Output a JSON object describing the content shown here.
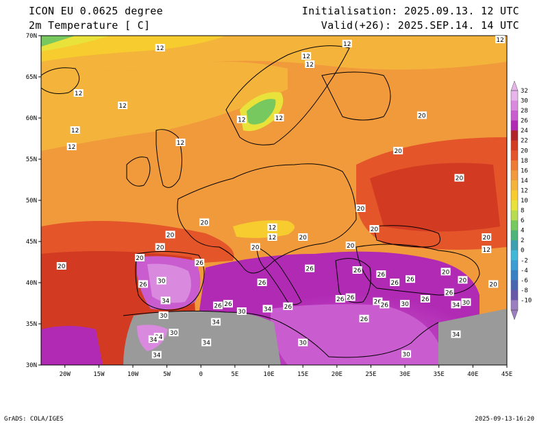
{
  "header": {
    "title_left": "ICON EU 0.0625 degree",
    "subtitle_left": "2m Temperature [ C]",
    "init": "Initialisation: 2025.09.13. 12 UTC",
    "valid": "Valid(+26): 2025.SEP.14. 14 UTC"
  },
  "axes": {
    "lat_ticks": [
      "70N",
      "65N",
      "60N",
      "55N",
      "50N",
      "45N",
      "40N",
      "35N",
      "30N"
    ],
    "lon_ticks": [
      "20W",
      "15W",
      "10W",
      "5W",
      "0",
      "5E",
      "10E",
      "15E",
      "20E",
      "25E",
      "30E",
      "35E",
      "40E",
      "45E"
    ]
  },
  "colorbar": {
    "levels": [
      "32",
      "30",
      "28",
      "26",
      "24",
      "22",
      "20",
      "18",
      "16",
      "14",
      "12",
      "10",
      "8",
      "6",
      "4",
      "2",
      "0",
      "-2",
      "-4",
      "-6",
      "-8",
      "-10"
    ],
    "colors": [
      "#e8b4ec",
      "#d98adf",
      "#c95ccf",
      "#b02ab3",
      "#b0242a",
      "#d23a22",
      "#e4552a",
      "#ee7a34",
      "#f09a3c",
      "#f4b43c",
      "#f6cc2e",
      "#e9e23a",
      "#b8dc50",
      "#78c860",
      "#4cb478",
      "#3ca0b0",
      "#40b8d8",
      "#3c9cd4",
      "#3a80c4",
      "#4a66b0",
      "#6a58a8",
      "#9a7ec0"
    ]
  },
  "contour_labels": [
    {
      "text": "12",
      "lon": -6,
      "lat": 68.5
    },
    {
      "text": "12",
      "lon": -18,
      "lat": 63
    },
    {
      "text": "12",
      "lon": -11.5,
      "lat": 61.5
    },
    {
      "text": "12",
      "lon": -18.5,
      "lat": 58.5
    },
    {
      "text": "12",
      "lon": -19,
      "lat": 56.5
    },
    {
      "text": "12",
      "lon": -3,
      "lat": 57
    },
    {
      "text": "12",
      "lon": 11.5,
      "lat": 60
    },
    {
      "text": "12",
      "lon": 6,
      "lat": 59.8
    },
    {
      "text": "12",
      "lon": 15.5,
      "lat": 67.5
    },
    {
      "text": "12",
      "lon": 16,
      "lat": 66.5
    },
    {
      "text": "12",
      "lon": 21.5,
      "lat": 69
    },
    {
      "text": "12",
      "lon": 44,
      "lat": 69.5
    },
    {
      "text": "12",
      "lon": 10.5,
      "lat": 46.7
    },
    {
      "text": "12",
      "lon": 10.5,
      "lat": 45.5
    },
    {
      "text": "12",
      "lon": 42,
      "lat": 44
    },
    {
      "text": "20",
      "lon": 32.5,
      "lat": 60.3
    },
    {
      "text": "20",
      "lon": 29,
      "lat": 56
    },
    {
      "text": "20",
      "lon": 38,
      "lat": 52.7
    },
    {
      "text": "20",
      "lon": 23.5,
      "lat": 49
    },
    {
      "text": "20",
      "lon": 0.5,
      "lat": 47.3
    },
    {
      "text": "20",
      "lon": -4.5,
      "lat": 45.8
    },
    {
      "text": "20",
      "lon": -20.5,
      "lat": 42
    },
    {
      "text": "20",
      "lon": -9,
      "lat": 43
    },
    {
      "text": "20",
      "lon": 8,
      "lat": 44.3
    },
    {
      "text": "20",
      "lon": 15,
      "lat": 45.5
    },
    {
      "text": "20",
      "lon": 22,
      "lat": 44.5
    },
    {
      "text": "20",
      "lon": 25.5,
      "lat": 46.5
    },
    {
      "text": "20",
      "lon": 42,
      "lat": 45.5
    },
    {
      "text": "20",
      "lon": 36,
      "lat": 41.3
    },
    {
      "text": "20",
      "lon": 38.5,
      "lat": 40.3
    },
    {
      "text": "20",
      "lon": 43,
      "lat": 39.8
    },
    {
      "text": "20",
      "lon": -6,
      "lat": 44.3
    },
    {
      "text": "26",
      "lon": -0.2,
      "lat": 42.4
    },
    {
      "text": "26",
      "lon": -8.5,
      "lat": 39.8
    },
    {
      "text": "26",
      "lon": 16,
      "lat": 41.7
    },
    {
      "text": "26",
      "lon": 23,
      "lat": 41.5
    },
    {
      "text": "26",
      "lon": 26.5,
      "lat": 41
    },
    {
      "text": "26",
      "lon": 28.5,
      "lat": 40
    },
    {
      "text": "26",
      "lon": 30.8,
      "lat": 40.4
    },
    {
      "text": "26",
      "lon": 22,
      "lat": 38.2
    },
    {
      "text": "26",
      "lon": 20.5,
      "lat": 38
    },
    {
      "text": "26",
      "lon": 26,
      "lat": 37.7
    },
    {
      "text": "26",
      "lon": 33,
      "lat": 38
    },
    {
      "text": "26",
      "lon": 36.5,
      "lat": 38.8
    },
    {
      "text": "26",
      "lon": 2.5,
      "lat": 37.2
    },
    {
      "text": "26",
      "lon": 4,
      "lat": 37.4
    },
    {
      "text": "26",
      "lon": 12.8,
      "lat": 37.1
    },
    {
      "text": "26",
      "lon": 24,
      "lat": 35.6
    },
    {
      "text": "26",
      "lon": 9,
      "lat": 40
    },
    {
      "text": "26",
      "lon": 27,
      "lat": 37.3
    },
    {
      "text": "30",
      "lon": -5.8,
      "lat": 40.2
    },
    {
      "text": "30",
      "lon": -5.5,
      "lat": 36
    },
    {
      "text": "30",
      "lon": 6,
      "lat": 36.5
    },
    {
      "text": "30",
      "lon": -4,
      "lat": 33.9
    },
    {
      "text": "30",
      "lon": 15,
      "lat": 32.7
    },
    {
      "text": "30",
      "lon": 30,
      "lat": 37.4
    },
    {
      "text": "30",
      "lon": 30.2,
      "lat": 31.3
    },
    {
      "text": "30",
      "lon": 39,
      "lat": 37.6
    },
    {
      "text": "34",
      "lon": -5.2,
      "lat": 37.8
    },
    {
      "text": "34",
      "lon": 9.8,
      "lat": 36.8
    },
    {
      "text": "34",
      "lon": 2.2,
      "lat": 35.2
    },
    {
      "text": "34",
      "lon": -6.2,
      "lat": 33.4
    },
    {
      "text": "34",
      "lon": -7,
      "lat": 33.1
    },
    {
      "text": "34",
      "lon": 0.8,
      "lat": 32.7
    },
    {
      "text": "34",
      "lon": -6.5,
      "lat": 31.2
    },
    {
      "text": "34",
      "lon": 37.5,
      "lat": 37.3
    },
    {
      "text": "34",
      "lon": 37.5,
      "lat": 33.7
    }
  ],
  "footer": {
    "credit": "GrADS: COLA/IGES",
    "timestamp": "2025-09-13-16:20"
  }
}
